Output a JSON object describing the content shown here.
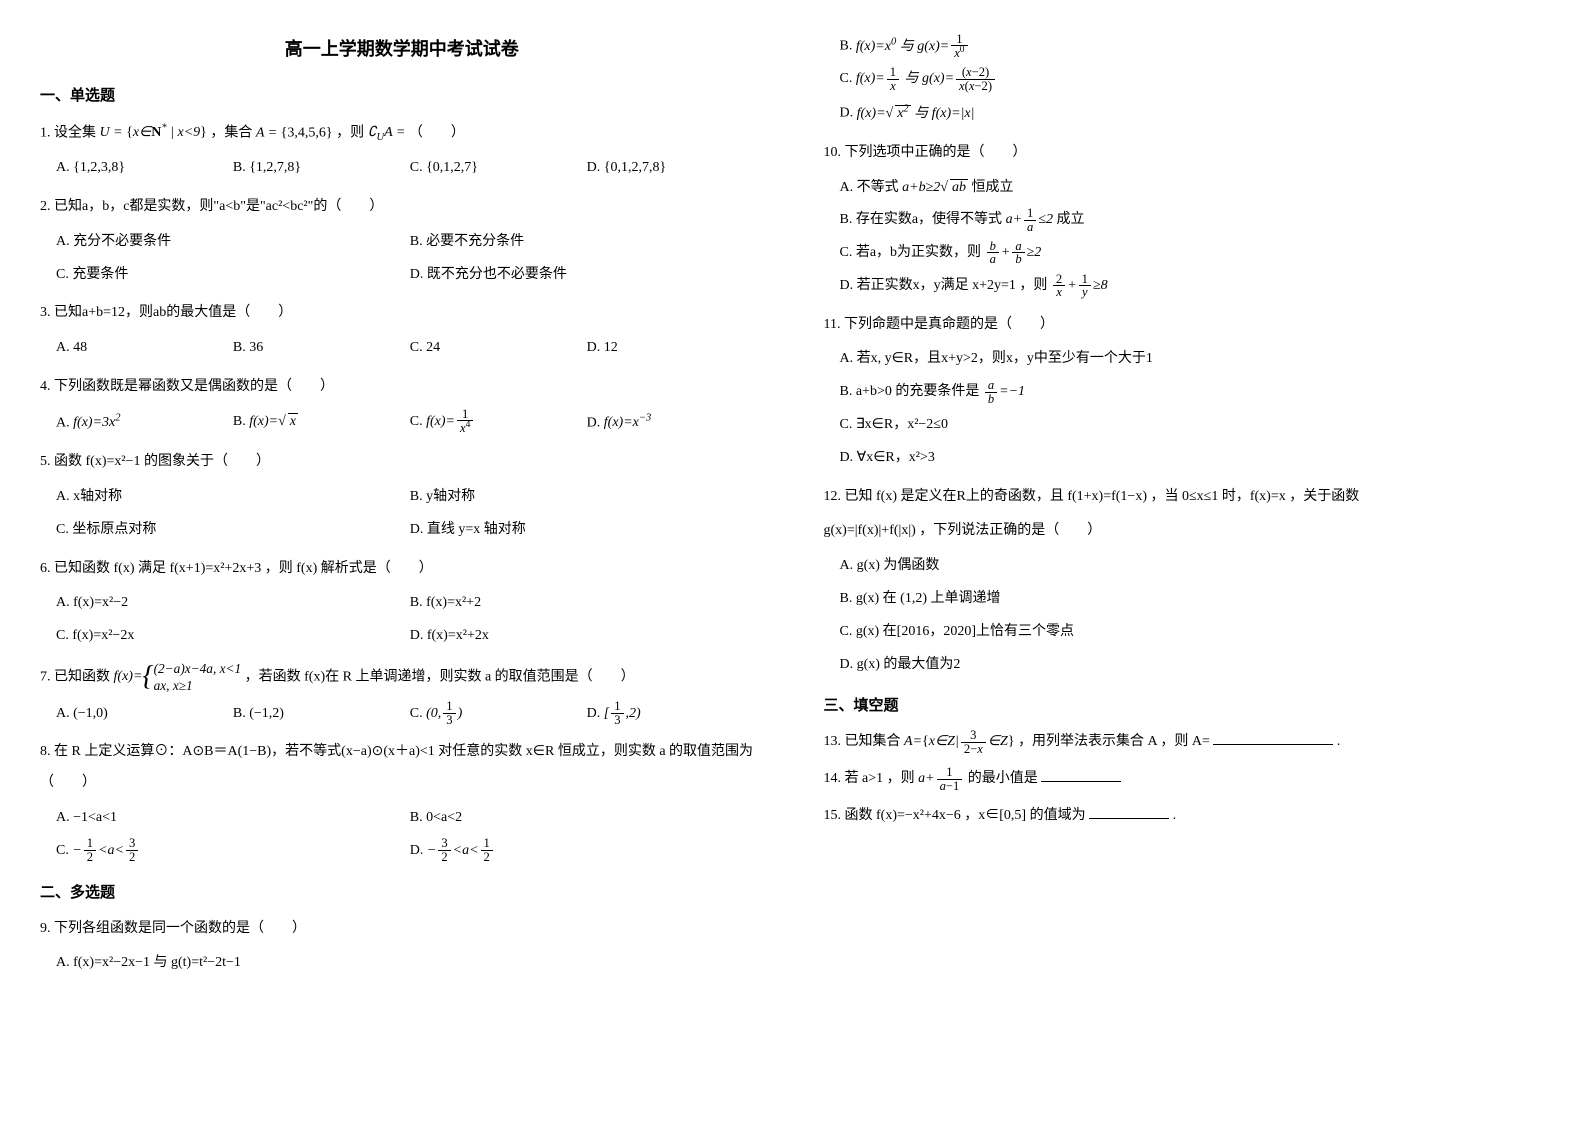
{
  "exam_title": "高一上学期数学期中考试试卷",
  "sections": {
    "s1": "一、单选题",
    "s2": "二、多选题",
    "s3": "三、填空题"
  },
  "q": {
    "q1": {
      "stem_prefix": "1. 设全集 ",
      "stem_mid1": " ，集合 ",
      "stem_mid2": " ，则 ",
      "stem_suffix": " （　　）",
      "A": "A. {1,2,3,8}",
      "B": "B. {1,2,7,8}",
      "C": "C. {0,1,2,7}",
      "D": "D. {0,1,2,7,8}"
    },
    "q2": {
      "stem": "2. 已知a，b，c都是实数，则\"a<b\"是\"ac²<bc²\"的（　　）",
      "A": "A. 充分不必要条件",
      "B": "B. 必要不充分条件",
      "C": "C. 充要条件",
      "D": "D. 既不充分也不必要条件"
    },
    "q3": {
      "stem": "3. 已知a+b=12，则ab的最大值是（　　）",
      "A": "A. 48",
      "B": "B. 36",
      "C": "C. 24",
      "D": "D. 12"
    },
    "q4": {
      "stem": "4. 下列函数既是幂函数又是偶函数的是（　　）",
      "A_pre": "A. ",
      "B_pre": "B. ",
      "C_pre": "C. ",
      "D_pre": "D. "
    },
    "q5": {
      "stem": "5. 函数 f(x)=x²−1 的图象关于（　　）",
      "A": "A. x轴对称",
      "B": "B. y轴对称",
      "C": "C. 坐标原点对称",
      "D": "D. 直线 y=x 轴对称"
    },
    "q6": {
      "stem": "6. 已知函数 f(x) 满足 f(x+1)=x²+2x+3 ，则 f(x) 解析式是（　　）",
      "A": "A. f(x)=x²−2",
      "B": "B. f(x)=x²+2",
      "C": "C. f(x)=x²−2x",
      "D": "D. f(x)=x²+2x"
    },
    "q7": {
      "stem_pre": "7. 已知函数 ",
      "stem_post": " ，若函数 f(x)在 R 上单调递增，则实数 a 的取值范围是（　　）",
      "A": "A. (−1,0)",
      "B": "B. (−1,2)",
      "C_pre": "C. ",
      "D_pre": "D. "
    },
    "q8": {
      "stem": "8. 在 R 上定义运算⊙：A⊙B＝A(1−B)，若不等式(x−a)⊙(x＋a)<1 对任意的实数 x∈R 恒成立，则实数 a 的取值范围为（　　）",
      "A": "A. −1<a<1",
      "B": "B. 0<a<2",
      "C_pre": "C. ",
      "D_pre": "D. "
    },
    "q9": {
      "stem": "9. 下列各组函数是同一个函数的是（　　）",
      "A": "A. f(x)=x²−2x−1 与 g(t)=t²−2t−1",
      "B_pre": "B. ",
      "C_pre": "C. ",
      "D_pre": "D. "
    },
    "q10": {
      "stem": "10. 下列选项中正确的是（　　）",
      "A_pre": "A. 不等式 ",
      "A_post": " 恒成立",
      "B_pre": "B. 存在实数a，使得不等式 ",
      "B_post": " 成立",
      "C_pre": "C. 若a，b为正实数，则 ",
      "D_pre": "D. 若正实数x，y满足 x+2y=1 ，则 "
    },
    "q11": {
      "stem": "11. 下列命题中是真命题的是（　　）",
      "A": "A. 若x, y∈R，且x+y>2，则x，y中至少有一个大于1",
      "B_pre": "B. a+b>0 的充要条件是 ",
      "C": "C. ∃x∈R，x²−2≤0",
      "D": "D. ∀x∈R，x²>3"
    },
    "q12": {
      "stem1": "12. 已知 f(x) 是定义在R上的奇函数，且 f(1+x)=f(1−x) ，当 0≤x≤1 时，f(x)=x ，关于函数",
      "stem2": "g(x)=|f(x)|+f(|x|) ，下列说法正确的是（　　）",
      "A": "A. g(x) 为偶函数",
      "B": "B. g(x) 在 (1,2) 上单调递增",
      "C": "C. g(x) 在[2016，2020]上恰有三个零点",
      "D": "D. g(x) 的最大值为2"
    },
    "q13": {
      "stem_pre": "13. 已知集合 ",
      "stem_post": " ，用列举法表示集合 A ，则 A= ",
      "suffix": "."
    },
    "q14": {
      "stem_pre": "14. 若 a>1 ，则 ",
      "stem_post": " 的最小值是"
    },
    "q15": {
      "stem": "15. 函数 f(x)=−x²+4x−6 ，x∈[0,5] 的值域为",
      "suffix": "."
    }
  },
  "colors": {
    "text": "#000000",
    "background": "#ffffff"
  },
  "typography": {
    "base_font_size": 14,
    "title_font_size": 18,
    "section_font_size": 15,
    "line_height": 2.2
  }
}
